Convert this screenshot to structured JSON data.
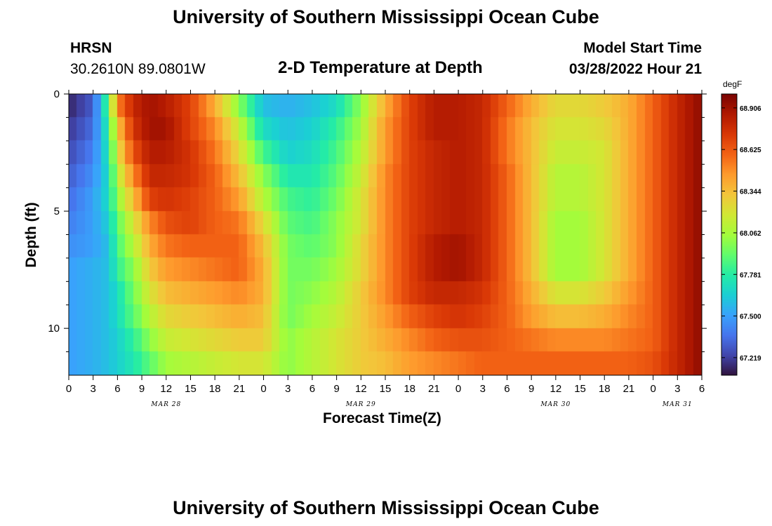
{
  "header": {
    "title": "University of Southern Mississippi Ocean Cube",
    "station": "HRSN",
    "coords": "30.2610N  89.0801W",
    "subtitle": "2-D Temperature at Depth",
    "model_label": "Model Start Time",
    "model_time": "03/28/2022 Hour 21"
  },
  "footer": {
    "title": "University of Southern Mississippi Ocean Cube"
  },
  "chart_data": {
    "type": "heatmap",
    "title": "2-D Temperature at Depth",
    "xlabel": "Forecast Time(Z)",
    "ylabel": "Depth (ft)",
    "x_unit": "hours from MAR 28 00Z",
    "xlim": [
      0,
      78
    ],
    "ylim": [
      12,
      0
    ],
    "x_ticks": [
      0,
      3,
      6,
      9,
      12,
      15,
      18,
      21,
      24,
      27,
      30,
      33,
      36,
      39,
      42,
      45,
      48,
      51,
      54,
      57,
      60,
      63,
      66,
      69,
      72,
      75,
      78
    ],
    "x_tick_labels": [
      "0",
      "3",
      "6",
      "9",
      "12",
      "15",
      "18",
      "21",
      "0",
      "3",
      "6",
      "9",
      "12",
      "15",
      "18",
      "21",
      "0",
      "3",
      "6",
      "9",
      "12",
      "15",
      "18",
      "21",
      "0",
      "3",
      "6"
    ],
    "y_ticks": [
      0,
      5,
      10
    ],
    "y_tick_labels": [
      "0",
      "5",
      "10"
    ],
    "day_labels": [
      {
        "text": "MAR 28",
        "hour": 12
      },
      {
        "text": "MAR 29",
        "hour": 36
      },
      {
        "text": "MAR 30",
        "hour": 60
      },
      {
        "text": "MAR 31",
        "hour": 75
      }
    ],
    "colorbar": {
      "unit": "degF",
      "min": 67.1,
      "max": 69.0,
      "ticks": [
        67.219,
        67.5,
        67.781,
        68.062,
        68.344,
        68.625,
        68.906
      ],
      "tick_labels": [
        "67.219",
        "67.500",
        "67.781",
        "68.062",
        "68.344",
        "68.625",
        "68.906"
      ]
    },
    "grid": {
      "x_step_hours": 1,
      "depth_step_ft": 1,
      "depths_ft": [
        0,
        1,
        2,
        3,
        4,
        5,
        6,
        7,
        8,
        9,
        10,
        11
      ],
      "anchor_hours": [
        0,
        3,
        5,
        6,
        8,
        10,
        12,
        15,
        18,
        21,
        24,
        27,
        30,
        33,
        36,
        39,
        42,
        45,
        48,
        51,
        54,
        57,
        60,
        63,
        66,
        69,
        72,
        75,
        78
      ],
      "anchor_values_degF": [
        [
          67.15,
          67.3,
          67.9,
          68.5,
          68.8,
          68.9,
          68.85,
          68.7,
          68.4,
          68.0,
          67.6,
          67.55,
          67.6,
          67.7,
          68.0,
          68.4,
          68.7,
          68.85,
          68.85,
          68.8,
          68.6,
          68.4,
          68.25,
          68.25,
          68.3,
          68.4,
          68.6,
          68.8,
          68.95
        ],
        [
          67.2,
          67.35,
          67.8,
          68.3,
          68.75,
          68.9,
          68.9,
          68.7,
          68.5,
          68.15,
          67.7,
          67.6,
          67.65,
          67.8,
          68.05,
          68.45,
          68.7,
          68.85,
          68.85,
          68.8,
          68.55,
          68.35,
          68.2,
          68.2,
          68.25,
          68.4,
          68.6,
          68.8,
          68.95
        ],
        [
          67.25,
          67.4,
          67.75,
          68.2,
          68.65,
          68.85,
          68.85,
          68.75,
          68.55,
          68.25,
          67.85,
          67.65,
          67.7,
          67.85,
          68.1,
          68.45,
          68.7,
          68.8,
          68.85,
          68.8,
          68.55,
          68.35,
          68.15,
          68.15,
          68.2,
          68.4,
          68.6,
          68.8,
          68.95
        ],
        [
          67.3,
          67.45,
          67.7,
          68.1,
          68.5,
          68.8,
          68.8,
          68.75,
          68.6,
          68.35,
          68.0,
          67.75,
          67.75,
          67.9,
          68.15,
          68.5,
          68.7,
          68.8,
          68.85,
          68.8,
          68.6,
          68.35,
          68.1,
          68.1,
          68.2,
          68.4,
          68.6,
          68.8,
          68.95
        ],
        [
          67.35,
          67.5,
          67.7,
          68.0,
          68.35,
          68.7,
          68.75,
          68.7,
          68.6,
          68.45,
          68.1,
          67.85,
          67.8,
          67.95,
          68.2,
          68.5,
          68.7,
          68.8,
          68.85,
          68.8,
          68.6,
          68.35,
          68.1,
          68.1,
          68.2,
          68.4,
          68.6,
          68.8,
          68.95
        ],
        [
          67.4,
          67.5,
          67.65,
          67.9,
          68.2,
          68.5,
          68.65,
          68.7,
          68.6,
          68.55,
          68.25,
          67.9,
          67.85,
          68.0,
          68.2,
          68.5,
          68.7,
          68.8,
          68.85,
          68.8,
          68.6,
          68.35,
          68.05,
          68.05,
          68.2,
          68.4,
          68.6,
          68.8,
          68.95
        ],
        [
          67.45,
          67.5,
          67.6,
          67.85,
          68.1,
          68.4,
          68.55,
          68.6,
          68.6,
          68.6,
          68.35,
          67.95,
          67.9,
          68.0,
          68.25,
          68.5,
          68.7,
          68.85,
          68.9,
          68.8,
          68.6,
          68.35,
          68.05,
          68.05,
          68.2,
          68.4,
          68.6,
          68.8,
          68.95
        ],
        [
          67.5,
          67.55,
          67.6,
          67.8,
          68.0,
          68.3,
          68.45,
          68.5,
          68.55,
          68.6,
          68.4,
          67.95,
          67.95,
          68.05,
          68.25,
          68.5,
          68.7,
          68.85,
          68.9,
          68.8,
          68.6,
          68.35,
          68.05,
          68.05,
          68.2,
          68.4,
          68.6,
          68.8,
          68.95
        ],
        [
          67.5,
          67.55,
          67.6,
          67.7,
          67.95,
          68.2,
          68.35,
          68.4,
          68.45,
          68.5,
          68.4,
          67.95,
          68.0,
          68.1,
          68.3,
          68.5,
          68.7,
          68.8,
          68.8,
          68.75,
          68.6,
          68.4,
          68.2,
          68.2,
          68.3,
          68.45,
          68.6,
          68.8,
          68.95
        ],
        [
          67.5,
          67.55,
          67.6,
          67.7,
          67.9,
          68.1,
          68.25,
          68.3,
          68.35,
          68.4,
          68.35,
          67.95,
          68.05,
          68.15,
          68.3,
          68.45,
          68.6,
          68.7,
          68.75,
          68.7,
          68.6,
          68.45,
          68.35,
          68.35,
          68.4,
          68.5,
          68.6,
          68.8,
          68.95
        ],
        [
          67.5,
          67.55,
          67.6,
          67.65,
          67.8,
          68.0,
          68.15,
          68.2,
          68.25,
          68.3,
          68.3,
          68.0,
          68.1,
          68.2,
          68.3,
          68.4,
          68.5,
          68.6,
          68.65,
          68.65,
          68.6,
          68.55,
          68.5,
          68.5,
          68.5,
          68.55,
          68.6,
          68.8,
          68.95
        ],
        [
          67.5,
          67.55,
          67.6,
          67.65,
          67.75,
          67.9,
          68.05,
          68.1,
          68.15,
          68.2,
          68.2,
          68.0,
          68.1,
          68.2,
          68.3,
          68.35,
          68.45,
          68.5,
          68.55,
          68.6,
          68.6,
          68.6,
          68.6,
          68.6,
          68.6,
          68.6,
          68.65,
          68.8,
          68.95
        ]
      ]
    }
  },
  "colors": {
    "colormap": [
      "#30123b",
      "#4145ab",
      "#4675ed",
      "#39a2fc",
      "#1bcfd4",
      "#24eca6",
      "#61fc6c",
      "#a4fc3b",
      "#d1e834",
      "#f3c63a",
      "#fe9b2d",
      "#f36315",
      "#d93806",
      "#b11901",
      "#7a0402"
    ]
  }
}
